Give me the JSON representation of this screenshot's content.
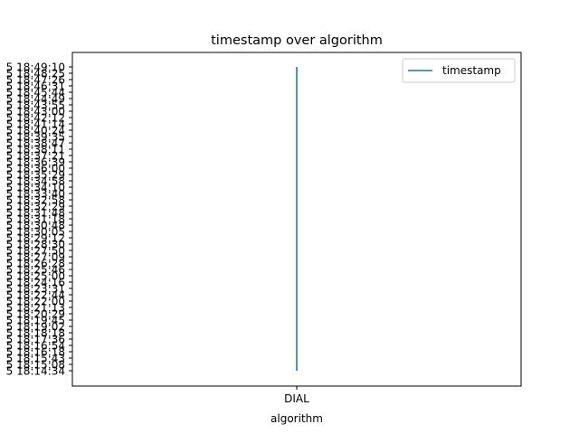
{
  "chart_data": {
    "type": "line",
    "title": "timestamp over algorithm",
    "xlabel": "algorithm",
    "ylabel": "",
    "categories": [
      "DIAL"
    ],
    "series": [
      {
        "name": "timestamp",
        "color": "#1f77b4"
      }
    ],
    "y_ticks": [
      "5 18:14:34",
      "5 18:15:08",
      "5 18:15:43",
      "5 18:16:18",
      "5 18:16:54",
      "5 18:17:36",
      "5 18:18:18",
      "5 18:19:02",
      "5 18:19:45",
      "5 18:20:29",
      "5 18:21:13",
      "5 18:22:00",
      "5 18:22:44",
      "5 18:23:31",
      "5 18:24:16",
      "5 18:25:00",
      "5 18:25:46",
      "5 18:26:28",
      "5 18:27:09",
      "5 18:27:50",
      "5 18:28:30",
      "5 18:29:12",
      "5 18:30:05",
      "5 18:30:48",
      "5 18:31:18",
      "5 18:31:48",
      "5 18:32:29",
      "5 18:32:58",
      "5 18:33:40",
      "5 18:34:10",
      "5 18:34:58",
      "5 18:35:29",
      "5 18:36:00",
      "5 18:36:39",
      "5 18:37:21",
      "5 18:38:11",
      "5 18:38:47",
      "5 18:39:35",
      "5 18:40:24",
      "5 18:41:14",
      "5 18:42:12",
      "5 18:43:00",
      "5 18:43:55",
      "5 18:44:49",
      "5 18:45:44",
      "5 18:46:31",
      "5 18:47:26",
      "5 18:48:25",
      "5 18:49:10"
    ],
    "y_range": [
      "5 18:14:34",
      "5 18:49:10"
    ],
    "grid": false,
    "legend_position": "upper right"
  }
}
